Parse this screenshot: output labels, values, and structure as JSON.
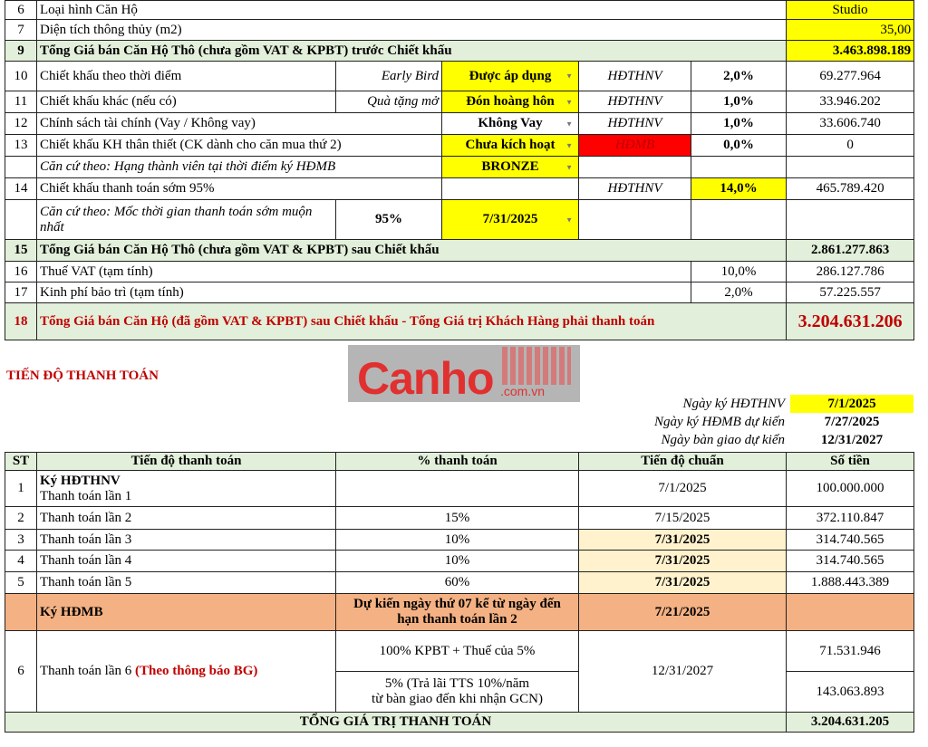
{
  "summary": {
    "r6": {
      "no": "6",
      "label": "Loại hình Căn Hộ",
      "value": "Studio"
    },
    "r7": {
      "no": "7",
      "label": "Diện tích thông thủy (m2)",
      "value": "35,00"
    },
    "r9": {
      "no": "9",
      "label": "Tổng Giá bán Căn Hộ Thô (chưa gồm VAT & KPBT) trước Chiết khấu",
      "value": "3.463.898.189"
    },
    "r10": {
      "no": "10",
      "label": "Chiết khấu theo thời điểm",
      "note": "Early Bird",
      "option": "Được áp dụng",
      "contract": "HĐTHNV",
      "pct": "2,0%",
      "value": "69.277.964"
    },
    "r11": {
      "no": "11",
      "label": "Chiết khấu khác (nếu có)",
      "note": "Quà tặng mở",
      "option": "Đón hoàng hôn",
      "contract": "HĐTHNV",
      "pct": "1,0%",
      "value": "33.946.202"
    },
    "r12": {
      "no": "12",
      "label": "Chính sách tài chính (Vay / Không vay)",
      "option": "Không Vay",
      "contract": "HĐTHNV",
      "pct": "1,0%",
      "value": "33.606.740"
    },
    "r13": {
      "no": "13",
      "label": "Chiết khấu KH thân thiết (CK dành cho căn mua thứ 2)",
      "option": "Chưa kích hoạt",
      "contract": "HĐMB",
      "pct": "0,0%",
      "value": "0"
    },
    "r13b": {
      "label": "Căn cứ theo: Hạng thành viên tại thời điểm ký HĐMB",
      "option": "BRONZE"
    },
    "r14": {
      "no": "14",
      "label": "Chiết khấu thanh toán sớm 95%",
      "contract": "HĐTHNV",
      "pct": "14,0%",
      "value": "465.789.420"
    },
    "r14b": {
      "label": "Căn cứ theo: Mốc thời gian thanh toán sớm muộn nhất",
      "note": "95%",
      "option": "7/31/2025"
    },
    "r15": {
      "no": "15",
      "label": "Tổng Giá bán Căn Hộ Thô (chưa gồm VAT & KPBT) sau Chiết khấu",
      "value": "2.861.277.863"
    },
    "r16": {
      "no": "16",
      "label": "Thuế VAT (tạm tính)",
      "pct": "10,0%",
      "value": "286.127.786"
    },
    "r17": {
      "no": "17",
      "label": "Kinh phí bảo trì (tạm tính)",
      "pct": "2,0%",
      "value": "57.225.557"
    },
    "r18": {
      "no": "18",
      "label": "Tổng Giá bán Căn Hộ (đã gồm VAT & KPBT) sau Chiết khấu - Tổng Giá trị Khách Hàng phải thanh toán",
      "value": "3.204.631.206"
    }
  },
  "watermark": "Canho.com.vn",
  "schedule_title": "TIẾN ĐỘ THANH TOÁN",
  "dates": [
    {
      "label": "Ngày ký HĐTHNV",
      "value": "7/1/2025"
    },
    {
      "label": "Ngày ký HĐMB dự kiến",
      "value": "7/27/2025"
    },
    {
      "label": "Ngày bàn giao dự kiến",
      "value": "12/31/2027"
    }
  ],
  "schedule": {
    "headers": [
      "ST",
      "Tiến độ thanh toán",
      "% thanh toán",
      "Tiến độ chuẩn",
      "Số tiền"
    ],
    "p1": {
      "no": "1",
      "title": "Ký HĐTHNV",
      "label": "Thanh toán lần 1",
      "date": "7/1/2025",
      "amount": "100.000.000"
    },
    "p2": {
      "no": "2",
      "label": "Thanh toán lần 2",
      "pct": "15%",
      "date": "7/15/2025",
      "amount": "372.110.847"
    },
    "p3": {
      "no": "3",
      "label": "Thanh toán lần 3",
      "pct": "10%",
      "date": "7/31/2025",
      "amount": "314.740.565"
    },
    "p4": {
      "no": "4",
      "label": "Thanh toán lần 4",
      "pct": "10%",
      "date": "7/31/2025",
      "amount": "314.740.565"
    },
    "p5": {
      "no": "5",
      "label": "Thanh toán lần 5",
      "pct": "60%",
      "date": "7/31/2025",
      "amount": "1.888.443.389"
    },
    "hdmb": {
      "label": "Ký HĐMB",
      "pct1": "Dự kiến ngày thứ 07 kể từ ngày đến",
      "pct2": "hạn thanh toán lần 2",
      "date": "7/21/2025"
    },
    "p6": {
      "no": "6",
      "label": "Thanh toán lần 6 ",
      "label_note": "(Theo thông báo BG)",
      "pct_a": "100% KPBT + Thuế của 5%",
      "pct_b1": "5% (Trả lãi TTS 10%/năm",
      "pct_b2": "từ bàn giao đến khi nhận GCN)",
      "date": "12/31/2027",
      "amount_a": "71.531.946",
      "amount_b": "143.063.893"
    },
    "total": {
      "label": "TỔNG GIÁ TRỊ THANH TOÁN",
      "amount": "3.204.631.205"
    }
  },
  "colors": {
    "highlight": "#ffff00",
    "total_row": "#e2efda",
    "alert": "#ff0000",
    "date_cell": "#fff2cc",
    "hdmb_row": "#f4b183",
    "red_text": "#c00000"
  }
}
